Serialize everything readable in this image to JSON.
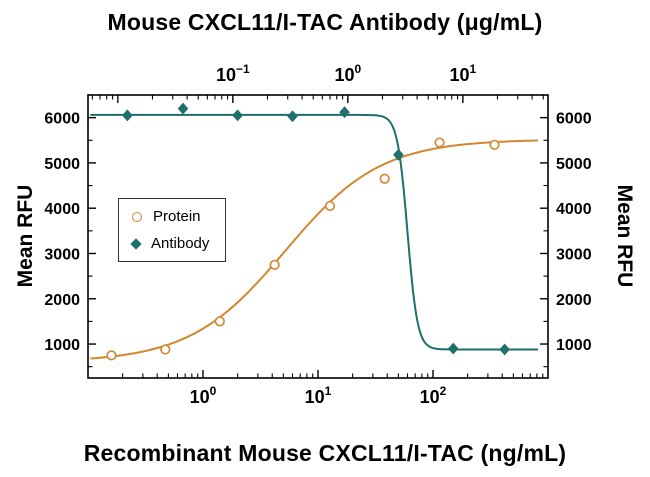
{
  "chart_data": {
    "type": "scatter",
    "title_top": "Mouse CXCL11/I-TAC Antibody (μg/mL)",
    "title_bottom": "Recombinant Mouse CXCL11/I-TAC (ng/mL)",
    "ylabel_left": "Mean RFU",
    "ylabel_right": "Mean RFU",
    "axes": {
      "y": {
        "min": 250,
        "max": 6500,
        "major_ticks": [
          1000,
          2000,
          3000,
          4000,
          5000,
          6000
        ],
        "minor_step": 500
      },
      "x_bottom": {
        "scale": "log",
        "min": 0.1,
        "max": 1000,
        "major_ticks": [
          {
            "value": 1,
            "base": "10",
            "exp": "0"
          },
          {
            "value": 10,
            "base": "10",
            "exp": "1"
          },
          {
            "value": 100,
            "base": "10",
            "exp": "2"
          }
        ]
      },
      "x_top": {
        "scale": "log",
        "min": 0.0055,
        "max": 55,
        "major_ticks": [
          {
            "value": 0.1,
            "base": "10",
            "exp": "−1"
          },
          {
            "value": 1,
            "base": "10",
            "exp": "0"
          },
          {
            "value": 10,
            "base": "10",
            "exp": "1"
          }
        ]
      }
    },
    "series": [
      {
        "name": "Protein",
        "marker": "open-circle",
        "color": "#D3862D",
        "x": [
          0.16,
          0.47,
          1.4,
          4.2,
          12.7,
          38,
          114,
          343
        ],
        "y": [
          750,
          880,
          1500,
          2750,
          4050,
          4650,
          5450,
          5400
        ],
        "fit": {
          "type": "4pl",
          "direction": "up",
          "bottom": 600,
          "top": 5520,
          "ec50": 5.2,
          "hill": 1.05
        }
      },
      {
        "name": "Antibody",
        "marker": "filled-diamond",
        "color": "#1E6F6E",
        "x": [
          0.22,
          0.67,
          2.0,
          6.0,
          17,
          50,
          150,
          420
        ],
        "y": [
          6050,
          6200,
          6050,
          6030,
          6120,
          5180,
          900,
          880
        ],
        "fit": {
          "type": "4pl",
          "direction": "down",
          "bottom": 880,
          "top": 6060,
          "ec50": 60,
          "hill": 10
        }
      }
    ],
    "curve_x_range": [
      0.105,
      820
    ],
    "legend": {
      "items": [
        {
          "label": "Protein"
        },
        {
          "label": "Antibody"
        }
      ]
    }
  }
}
